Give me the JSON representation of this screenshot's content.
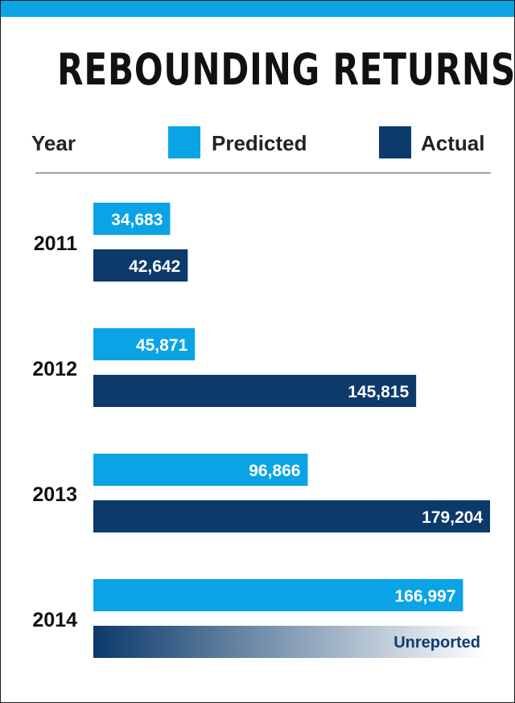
{
  "chart_data": {
    "type": "bar",
    "orientation": "horizontal",
    "title": "REBOUNDING RETURNS",
    "category_header": "Year",
    "categories": [
      "2011",
      "2012",
      "2013",
      "2014"
    ],
    "series": [
      {
        "name": "Predicted",
        "color": "#0aa3e6",
        "values": [
          34683,
          45871,
          96866,
          166997
        ],
        "labels": [
          "34,683",
          "45,871",
          "96,866",
          "166,997"
        ]
      },
      {
        "name": "Actual",
        "color": "#0b3a6b",
        "values": [
          42642,
          145815,
          179204,
          null
        ],
        "labels": [
          "42,642",
          "145,815",
          "179,204",
          "Unreported"
        ]
      }
    ],
    "legend_position": "top",
    "grid": false
  },
  "colors": {
    "top_bar": "#0aa3e6",
    "predicted": "#0aa3e6",
    "actual": "#0b3a6b",
    "unreported_label": "#0f3c6e"
  }
}
